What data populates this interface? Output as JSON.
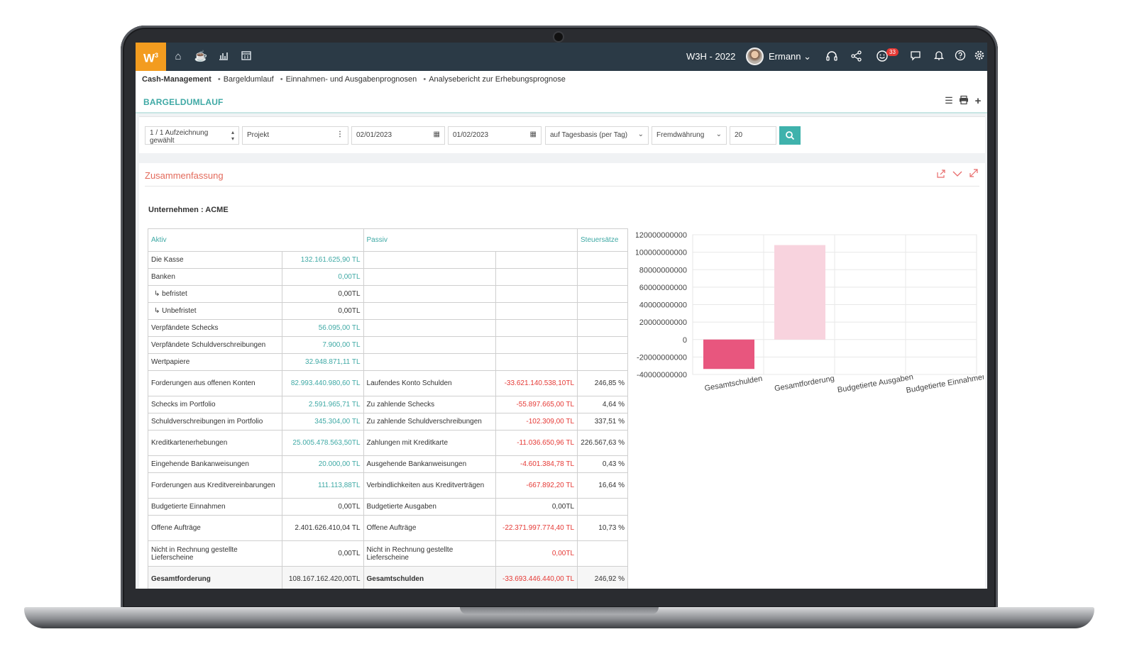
{
  "nav": {
    "logo": "W",
    "logo_sup": "3",
    "title": "W3H - 2022",
    "user": "Ermann",
    "notification_count": "33"
  },
  "breadcrumb": [
    "Cash-Management",
    "Bargeldumlauf",
    "Einnahmen- und Ausgabenprognosen",
    "Analysebericht zur Erhebungsprognose"
  ],
  "page": {
    "title": "BARGELDUMLAUF"
  },
  "filters": {
    "records": "1 / 1 Aufzeichnung gewählt",
    "project": "Projekt",
    "date_from": "02/01/2023",
    "date_to": "01/02/2023",
    "period": "auf Tagesbasis (per Tag)",
    "currency": "Fremdwährung",
    "limit": "20"
  },
  "panel": {
    "title": "Zusammenfassung",
    "company": "Unternehmen : ACME"
  },
  "table": {
    "headers": {
      "aktiv": "Aktiv",
      "passiv": "Passiv",
      "tax": "Steuersätze"
    },
    "rows": [
      {
        "a_label": "Die Kasse",
        "a_value": "132.161.625,90 TL",
        "a_color": "pos",
        "p_label": "",
        "p_value": "",
        "p_color": "",
        "tax": ""
      },
      {
        "a_label": "Banken",
        "a_value": "0,00TL",
        "a_color": "pos",
        "p_label": "",
        "p_value": "",
        "p_color": "",
        "tax": ""
      },
      {
        "a_label": "↳ befristet",
        "a_value": "0,00TL",
        "a_color": "plain",
        "p_label": "",
        "p_value": "",
        "p_color": "",
        "tax": ""
      },
      {
        "a_label": "↳ Unbefristet",
        "a_value": "0,00TL",
        "a_color": "plain",
        "p_label": "",
        "p_value": "",
        "p_color": "",
        "tax": ""
      },
      {
        "a_label": "Verpfändete Schecks",
        "a_value": "56.095,00 TL",
        "a_color": "pos",
        "p_label": "",
        "p_value": "",
        "p_color": "",
        "tax": ""
      },
      {
        "a_label": "Verpfändete Schuldverschreibungen",
        "a_value": "7.900,00 TL",
        "a_color": "pos",
        "p_label": "",
        "p_value": "",
        "p_color": "",
        "tax": ""
      },
      {
        "a_label": "Wertpapiere",
        "a_value": "32.948.871,11 TL",
        "a_color": "pos",
        "p_label": "",
        "p_value": "",
        "p_color": "",
        "tax": ""
      },
      {
        "a_label": "Forderungen aus offenen Konten",
        "a_value": "82.993.440.980,60 TL",
        "a_color": "pos",
        "p_label": "Laufendes Konto Schulden",
        "p_value": "-33.621.140.538,10TL",
        "p_color": "neg",
        "tax": "246,85 %"
      },
      {
        "a_label": "Schecks im Portfolio",
        "a_value": "2.591.965,71 TL",
        "a_color": "pos",
        "p_label": "Zu zahlende Schecks",
        "p_value": "-55.897.665,00 TL",
        "p_color": "neg",
        "tax": "4,64 %"
      },
      {
        "a_label": "Schuldverschreibungen im Portfolio",
        "a_value": "345.304,00 TL",
        "a_color": "pos",
        "p_label": "Zu zahlende Schuldverschreibungen",
        "p_value": "-102.309,00 TL",
        "p_color": "neg",
        "tax": "337,51 %"
      },
      {
        "a_label": "Kreditkartenerhebungen",
        "a_value": "25.005.478.563,50TL",
        "a_color": "pos",
        "p_label": "Zahlungen mit Kreditkarte",
        "p_value": "-11.036.650,96 TL",
        "p_color": "neg",
        "tax": "226.567,63 %"
      },
      {
        "a_label": "Eingehende Bankanweisungen",
        "a_value": "20.000,00 TL",
        "a_color": "pos",
        "p_label": "Ausgehende Bankanweisungen",
        "p_value": "-4.601.384,78 TL",
        "p_color": "neg",
        "tax": "0,43 %"
      },
      {
        "a_label": "Forderungen aus Kreditvereinbarungen",
        "a_value": "111.113,88TL",
        "a_color": "pos",
        "p_label": "Verbindlichkeiten aus Kreditverträgen",
        "p_value": "-667.892,20 TL",
        "p_color": "neg",
        "tax": "16,64 %"
      },
      {
        "a_label": "Budgetierte Einnahmen",
        "a_value": "0,00TL",
        "a_color": "plain",
        "p_label": "Budgetierte Ausgaben",
        "p_value": "0,00TL",
        "p_color": "plain",
        "tax": ""
      },
      {
        "a_label": "Offene Aufträge",
        "a_value": "2.401.626.410,04 TL",
        "a_color": "plain",
        "p_label": "Offene Aufträge",
        "p_value": "-22.371.997.774,40 TL",
        "p_color": "neg",
        "tax": "10,73 %"
      },
      {
        "a_label": "Nicht in Rechnung gestellte Lieferscheine",
        "a_value": "0,00TL",
        "a_color": "plain",
        "p_label": "Nicht in Rechnung gestellte Lieferscheine",
        "p_value": "0,00TL",
        "p_color": "neg",
        "tax": ""
      }
    ],
    "total": {
      "a_label": "Gesamtforderung",
      "a_value": "108.167.162.420,00TL",
      "p_label": "Gesamtschulden",
      "p_value": "-33.693.446.440,00 TL",
      "tax": "246,92 %"
    }
  },
  "colors": {
    "accent": "#3fa9a5",
    "negative": "#e53935",
    "brand": "#f39c1f",
    "topbar": "#2b3a46"
  },
  "chart_data": {
    "type": "bar",
    "categories": [
      "Gesamtschulden",
      "Gesamtforderung",
      "Budgetierte Ausgaben",
      "Budgetierte Einnahmen"
    ],
    "values": [
      -33693446440,
      108167162420,
      0,
      0
    ],
    "colors": [
      "#e8567e",
      "#f8d3de",
      "#f8d3de",
      "#f8d3de"
    ],
    "ylim": [
      -40000000000,
      120000000000
    ],
    "yticks": [
      "120000000000",
      "100000000000",
      "80000000000",
      "60000000000",
      "40000000000",
      "20000000000",
      "0",
      "-20000000000",
      "-40000000000"
    ],
    "ytick_values": [
      120000000000,
      100000000000,
      80000000000,
      60000000000,
      40000000000,
      20000000000,
      0,
      -20000000000,
      -40000000000
    ],
    "grid": true
  }
}
